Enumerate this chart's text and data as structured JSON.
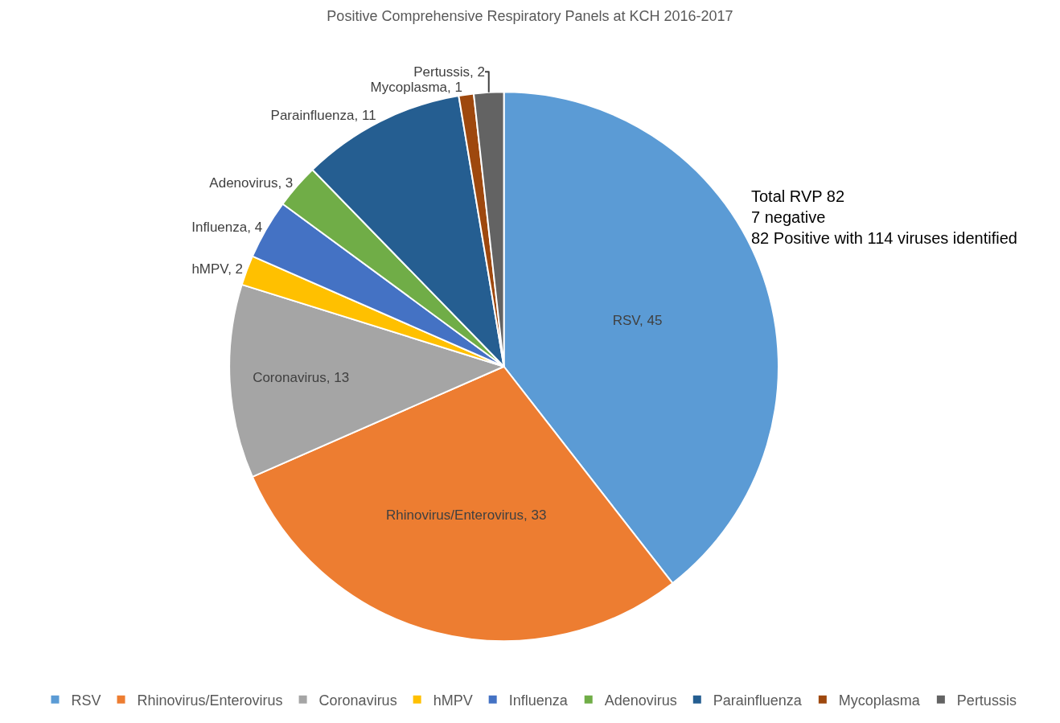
{
  "chart_data": {
    "type": "pie",
    "title": "Positive Comprehensive Respiratory Panels at KCH 2016-2017",
    "categories": [
      "RSV",
      "Rhinovirus/Enterovirus",
      "Coronavirus",
      "hMPV",
      "Influenza",
      "Adenovirus",
      "Parainfluenza",
      "Mycoplasma",
      "Pertussis"
    ],
    "values": [
      45,
      33,
      13,
      2,
      4,
      3,
      11,
      1,
      2
    ],
    "colors": [
      "#5b9bd5",
      "#ed7d31",
      "#a5a5a5",
      "#ffc000",
      "#4472c4",
      "#70ad47",
      "#255e91",
      "#9e480e",
      "#636363"
    ],
    "value_labels": [
      "RSV, 45",
      "Rhinovirus/Enterovirus, 33",
      "Coronavirus, 13",
      "hMPV, 2",
      "Influenza, 4",
      "Adenovirus, 3",
      "Parainfluenza, 11",
      "Mycoplasma, 1",
      "Pertussis, 2"
    ],
    "annotations": [
      "Total RVP 82\n7 negative\n82 Positive with 114 viruses identified"
    ],
    "legend": "bottom"
  }
}
